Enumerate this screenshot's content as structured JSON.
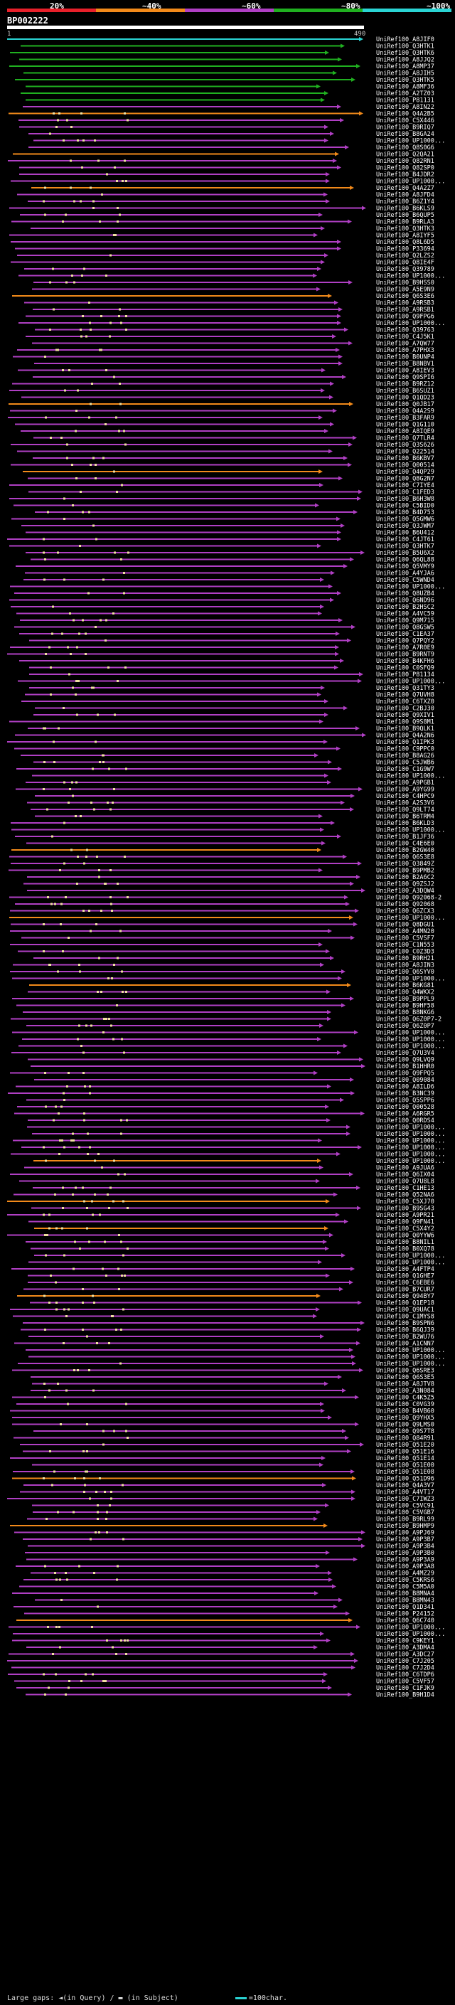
{
  "legend": [
    {
      "label": "20%",
      "color": "#e8202a"
    },
    {
      "label": "~40%",
      "color": "#f28a1a"
    },
    {
      "label": "~60%",
      "color": "#b03fc4"
    },
    {
      "label": "~80%",
      "color": "#20b020"
    },
    {
      "label": "~100%",
      "color": "#2ad4d4"
    }
  ],
  "query": {
    "id": "BP002222",
    "start": "1",
    "end": "490"
  },
  "footer": {
    "gaps_text": "Large gaps: ◄(in Query) / ▬ (in Subject)",
    "scale_text": "=100char."
  },
  "colors": {
    "cyan": "#2ad4d4",
    "green": "#20b020",
    "purple": "#b03fc4",
    "orange": "#f28a1a",
    "red": "#e8202a",
    "bg": "#000000"
  },
  "hit_labels": [
    "UniRef100_A8JIF0",
    "UniRef100_Q3HTK1",
    "UniRef100_Q3HTK6",
    "UniRef100_A8JJQ2",
    "UniRef100_A8MP37",
    "UniRef100_A8JIH5",
    "UniRef100_Q3HTK5",
    "UniRef100_A8MF36",
    "UniRef100_A2TZ03",
    "UniRef100_P81131",
    "UniRef100_A8IN22",
    "UniRef100_Q4A2B5",
    "UniRef100_C5X446",
    "UniRef100_B9RIQ7",
    "UniRef100_B8GA24",
    "UniRef100_UP1000...",
    "UniRef100_Q8S0G6",
    "UniRef100_Q2QA21",
    "UniRef100_Q82RN1",
    "UniRef100_Q82SP0",
    "UniRef100_B4JDR2",
    "UniRef100_UP1000...",
    "UniRef100_Q4A2Z7",
    "UniRef100_A8JFD4",
    "UniRef100_B6Z1Y4",
    "UniRef100_B6KLS9",
    "UniRef100_B6QUP5",
    "UniRef100_B9RLA3",
    "UniRef100_Q3HTK3",
    "UniRef100_A8IYF5",
    "UniRef100_Q8L6D5",
    "UniRef100_P33694",
    "UniRef100_Q2LZS2",
    "UniRef100_Q8IE4F",
    "UniRef100_Q39789",
    "UniRef100_UP1000...",
    "UniRef100_B9HSS0",
    "UniRef100_A5E9N9",
    "UniRef100_Q6S3E6",
    "UniRef100_A9RSB3",
    "UniRef100_A9RSB1",
    "UniRef100_Q9FPG6",
    "UniRef100_UP1000...",
    "UniRef100_Q39763",
    "UniRef100_C4J5K1",
    "UniRef100_A7QW77",
    "UniRef100_A7PHX3",
    "UniRef100_B0UNP4",
    "UniRef100_B8NBV1",
    "UniRef100_A8IEV3",
    "UniRef100_Q9SPI6",
    "UniRef100_B9RZ12",
    "UniRef100_B6SUZ1",
    "UniRef100_Q1QD23",
    "UniRef100_Q0JB17",
    "UniRef100_Q4A2S9",
    "UniRef100_B3FAR9",
    "UniRef100_Q1G110",
    "UniRef100_A8IQE9",
    "UniRef100_Q7TLR4",
    "UniRef100_Q3S626",
    "UniRef100_Q22514",
    "UniRef100_B6KBV7",
    "UniRef100_Q00514",
    "UniRef100_Q4QP29",
    "UniRef100_Q8G2N7",
    "UniRef100_C7IYE4",
    "UniRef100_C1FED3",
    "UniRef100_B6H3W8",
    "UniRef100_C5BID0",
    "UniRef100_B4D753",
    "UniRef100_Q5GMW6",
    "UniRef100_Q3JWM7",
    "UniRef100_B6U412",
    "UniRef100_C4JT61",
    "UniRef100_Q3HTK7",
    "UniRef100_B5U6X2",
    "UniRef100_Q6QL88",
    "UniRef100_Q5VMY9",
    "UniRef100_A4YJA6",
    "UniRef100_C5WND4",
    "UniRef100_UP1000...",
    "UniRef100_Q8UZB4",
    "UniRef100_Q6ND96",
    "UniRef100_B2HSC2",
    "UniRef100_A4VC59",
    "UniRef100_Q9M715",
    "UniRef100_Q8GSW5",
    "UniRef100_C1EA37",
    "UniRef100_Q7PQY2",
    "UniRef100_A7R0E9",
    "UniRef100_B9RNT9",
    "UniRef100_B4KFH6",
    "UniRef100_C0SFQ9",
    "UniRef100_P81134",
    "UniRef100_UP1000...",
    "UniRef100_Q31TY3",
    "UniRef100_Q7UVH8",
    "UniRef100_C6TXZ0",
    "UniRef100_C2BJ30",
    "UniRef100_Q9XIV1",
    "UniRef100_Q9S8M1",
    "UniRef100_B9QLK1",
    "UniRef100_Q4A2N6",
    "UniRef100_Q1IPK3",
    "UniRef100_C9PPC0",
    "UniRef100_B8AG26",
    "UniRef100_C5JWB6",
    "UniRef100_C1G9W7",
    "UniRef100_UP1000...",
    "UniRef100_A9PGB1",
    "UniRef100_A9YG99",
    "UniRef100_C4HPC9",
    "UniRef100_A2S3V6",
    "UniRef100_Q9LT74",
    "UniRef100_B6TRM4",
    "UniRef100_B6KLD3",
    "UniRef100_UP1000...",
    "UniRef100_B1JF36",
    "UniRef100_C4E6E0",
    "UniRef100_B2GW40",
    "UniRef100_Q6S3E8",
    "UniRef100_Q3849Z",
    "UniRef100_B9PMB2",
    "UniRef100_B2A6C2",
    "UniRef100_Q9ZSJ2",
    "UniRef100_A3DQW4",
    "UniRef100_Q92068-2",
    "UniRef100_Q92068",
    "UniRef100_Q6ZCX3",
    "UniRef100_UP1000...",
    "UniRef100_Q8DGU1",
    "UniRef100_A4MN20",
    "UniRef100_C5VSF7",
    "UniRef100_C1N553",
    "UniRef100_C0Z3D3",
    "UniRef100_B9RH21",
    "UniRef100_A8JIN3",
    "UniRef100_Q6SYV0",
    "UniRef100_UP1000...",
    "UniRef100_B6KG81",
    "UniRef100_Q4WKX2",
    "UniRef100_B9PPL9",
    "UniRef100_B9HF58",
    "UniRef100_B8NKG6",
    "UniRef100_Q6Z0P7-2",
    "UniRef100_Q6Z0P7",
    "UniRef100_UP1000...",
    "UniRef100_UP1000...",
    "UniRef100_UP1000...",
    "UniRef100_Q7U3V4",
    "UniRef100_Q9LVQ9",
    "UniRef100_B1HHR0",
    "UniRef100_Q9FPQ5",
    "UniRef100_Q09084",
    "UniRef100_A8ILD6",
    "UniRef100_B3NC39",
    "UniRef100_Q5SPP6",
    "UniRef100_Q00528",
    "UniRef100_A6RGR5",
    "UniRef100_Q0RDS4",
    "UniRef100_UP1000...",
    "UniRef100_UP1000...",
    "UniRef100_UP1000...",
    "UniRef100_UP1000...",
    "UniRef100_UP1000...",
    "UniRef100_UP1000...",
    "UniRef100_A9JUA6",
    "UniRef100_Q6IX04",
    "UniRef100_Q7U8L8",
    "UniRef100_C1HE13",
    "UniRef100_Q52NA6",
    "UniRef100_C5XJ70",
    "UniRef100_B9SG43",
    "UniRef100_A9PR21",
    "UniRef100_Q9FN41",
    "UniRef100_C5X4Y2",
    "UniRef100_Q0YYW6",
    "UniRef100_B8NIL1",
    "UniRef100_B0XQ78",
    "UniRef100_UP1000...",
    "UniRef100_UP1000...",
    "UniRef100_A4FTP4",
    "UniRef100_Q1GHE7",
    "UniRef100_C6EBE6",
    "UniRef100_B7CUR7",
    "UniRef100_Q94BY7",
    "UniRef100_Q1EP18",
    "UniRef100_Q9UAC1",
    "UniRef100_C1MYS8",
    "UniRef100_B9SPN6",
    "UniRef100_B6QJ39",
    "UniRef100_B2WU76",
    "UniRef100_A1CNN7",
    "UniRef100_UP1000...",
    "UniRef100_UP1000...",
    "UniRef100_UP1000...",
    "UniRef100_Q6SRE3",
    "UniRef100_Q6S3E5",
    "UniRef100_A8JTV8",
    "UniRef100_A3N084",
    "UniRef100_C4K5Z5",
    "UniRef100_C0VG39",
    "UniRef100_B4VB60",
    "UniRef100_Q9YHX5",
    "UniRef100_Q9LMS0",
    "UniRef100_Q9S7T8",
    "UniRef100_Q84R91",
    "UniRef100_Q51E20",
    "UniRef100_Q51E16",
    "UniRef100_Q51E14",
    "UniRef100_Q51E00",
    "UniRef100_Q51E08",
    "UniRef100_Q51D96",
    "UniRef100_Q4A3V7",
    "UniRef100_A4VT17",
    "UniRef100_C7IWZ3",
    "UniRef100_C5VC91",
    "UniRef100_C5VGB7",
    "UniRef100_B9RL99",
    "UniRef100_B9HMP9",
    "UniRef100_A9PJ69",
    "UniRef100_A9P3B7",
    "UniRef100_A9P3B4",
    "UniRef100_A9P3B0",
    "UniRef100_A9P3A9",
    "UniRef100_A9P3A8",
    "UniRef100_A4MZ29",
    "UniRef100_C5KRS6",
    "UniRef100_C5M5A0",
    "UniRef100_B8MNA4",
    "UniRef100_B8MN43",
    "UniRef100_Q1D341",
    "UniRef100_P24152",
    "UniRef100_Q6C740",
    "UniRef100_UP1000...",
    "UniRef100_UP1000...",
    "UniRef100_C9KEY1",
    "UniRef100_A3DMA4",
    "UniRef100_A3DC27",
    "UniRef100_C7J205",
    "UniRef100_C7J2D4",
    "UniRef100_C6TDP6",
    "UniRef100_C5VF57",
    "UniRef100_C1FJK9",
    "UniRef100_B9H1D4"
  ]
}
